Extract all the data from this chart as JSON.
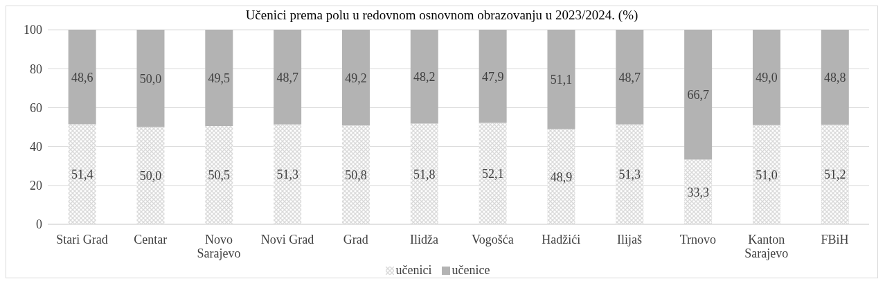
{
  "chart_data": {
    "type": "bar",
    "title": "Učenici prema polu u redovnom osnovnom obrazovanju u 2023/2024. (%)",
    "categories": [
      "Stari Grad",
      "Centar",
      "Novo Sarajevo",
      "Novi Grad",
      "Grad",
      "Ilidža",
      "Vogošća",
      "Hadžići",
      "Ilijaš",
      "Trnovo",
      "Kanton Sarajevo",
      "FBiH"
    ],
    "series": [
      {
        "name": "učenici",
        "color": "#d9d9d9",
        "values": [
          51.4,
          50.0,
          50.5,
          51.3,
          50.8,
          51.8,
          52.1,
          48.9,
          51.3,
          33.3,
          51.0,
          51.2
        ],
        "value_labels": [
          "51,4",
          "50,0",
          "50,5",
          "51,3",
          "50,8",
          "51,8",
          "52,1",
          "48,9",
          "51,3",
          "33,3",
          "51,0",
          "51,2"
        ]
      },
      {
        "name": "učenice",
        "color": "#b3b3b3",
        "values": [
          48.6,
          50.0,
          49.5,
          48.7,
          49.2,
          48.2,
          47.9,
          51.1,
          48.7,
          66.7,
          49.0,
          48.8
        ],
        "value_labels": [
          "48,6",
          "50,0",
          "49,5",
          "48,7",
          "49,2",
          "48,2",
          "47,9",
          "51,1",
          "48,7",
          "66,7",
          "49,0",
          "48,8"
        ]
      }
    ],
    "stacked": true,
    "ylim": [
      0,
      100
    ],
    "yticks": [
      0,
      20,
      40,
      60,
      80,
      100
    ],
    "grid": "y",
    "legend": "bottom"
  }
}
